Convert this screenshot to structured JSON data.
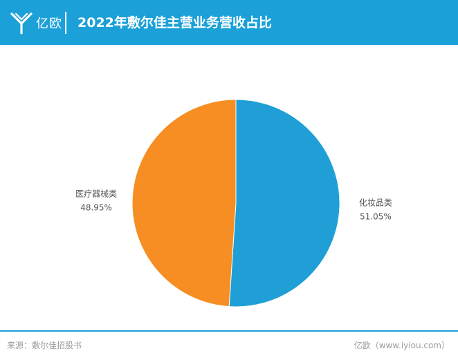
{
  "header": {
    "logo_text": "亿欧",
    "title": "2022年敷尔佳主营业务营收占比"
  },
  "colors": {
    "brand": "#1ba0d8",
    "slice_cosmetics": "#1f9fd5",
    "slice_medical": "#f68e23"
  },
  "chart_data": {
    "type": "pie",
    "title": "2022年敷尔佳主营业务营收占比",
    "slices": [
      {
        "label": "化妆品类",
        "value": 51.05,
        "value_label": "51.05%",
        "color": "#1f9fd5"
      },
      {
        "label": "医疗器械类",
        "value": 48.95,
        "value_label": "48.95%",
        "color": "#f68e23"
      }
    ],
    "start_angle_deg": 0,
    "direction": "clockwise",
    "legend": "none"
  },
  "footer": {
    "source": "来源：敷尔佳招股书",
    "credit": "亿欧（www.iyiou.com）"
  }
}
